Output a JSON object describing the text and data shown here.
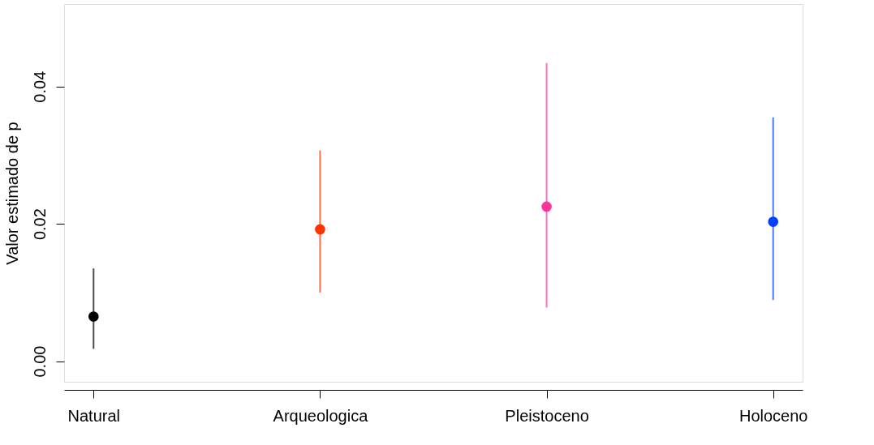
{
  "chart_data": {
    "type": "scatter",
    "ylabel": "Valor estimado de p",
    "categories": [
      "Natural",
      "Arqueologica",
      "Pleistoceno",
      "Holoceno"
    ],
    "values": [
      0.0065,
      0.0192,
      0.0225,
      0.0203
    ],
    "errors": [
      [
        0.0018,
        0.0135
      ],
      [
        0.01,
        0.0307
      ],
      [
        0.0078,
        0.0434
      ],
      [
        0.0089,
        0.0355
      ]
    ],
    "colors": [
      "#000000",
      "#ff3300",
      "#ff3399",
      "#0040ff"
    ],
    "ylim": [
      -0.003,
      0.052
    ],
    "yticks": [
      {
        "value": 0,
        "label": "0.00"
      },
      {
        "value": 0.02,
        "label": "0.02"
      },
      {
        "value": 0.04,
        "label": "0.04"
      }
    ],
    "marker": "circle",
    "grid": false,
    "legend": false
  }
}
